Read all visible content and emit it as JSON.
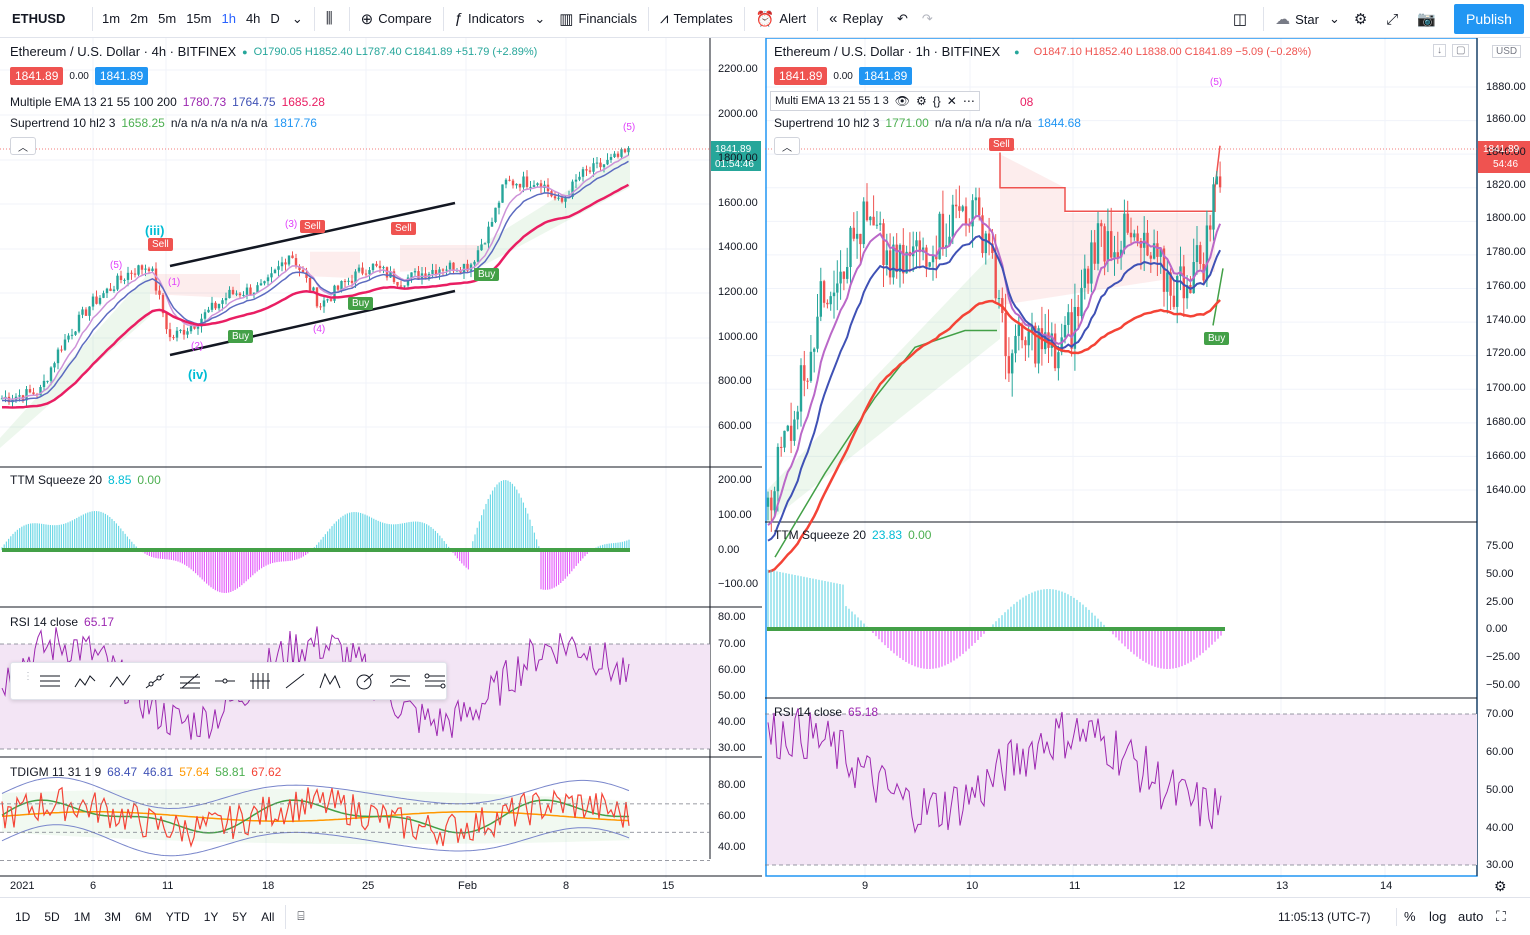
{
  "toolbar": {
    "symbol": "ETHUSD",
    "intervals": [
      "1m",
      "2m",
      "5m",
      "15m",
      "1h",
      "4h",
      "D"
    ],
    "active_interval": "1h",
    "compare": "Compare",
    "indicators": "Indicators",
    "financials": "Financials",
    "templates": "Templates",
    "alert": "Alert",
    "replay": "Replay",
    "star": "Star",
    "publish": "Publish"
  },
  "left_chart": {
    "title": "Ethereum / U.S. Dollar · 4h · BITFINEX",
    "ohlc": "O1790.05 H1852.40 L1787.40 C1841.89 +51.79 (+2.89%)",
    "bid": "1841.89",
    "spread": "0.00",
    "ask": "1841.89",
    "ema_legend": "Multiple EMA 13 21 55 100 200",
    "ema_values": [
      "1780.73",
      "1764.75",
      "1685.28"
    ],
    "supertrend_legend": "Supertrend 10 hl2 3",
    "supertrend_value": "1658.25",
    "supertrend_na": "n/a n/a n/a n/a n/a",
    "supertrend_value2": "1817.76",
    "price_axis": [
      "2200.00",
      "2000.00",
      "1800.00",
      "1600.00",
      "1400.00",
      "1200.00",
      "1000.00",
      "800.00",
      "600.00"
    ],
    "last_price": "1841.89",
    "countdown": "01:54:46",
    "ttm_legend": "TTM Squeeze 20",
    "ttm_v1": "8.85",
    "ttm_v2": "0.00",
    "ttm_axis": [
      "200.00",
      "100.00",
      "0.00",
      "−100.00"
    ],
    "rsi_legend": "RSI 14 close",
    "rsi_value": "65.17",
    "rsi_axis": [
      "80.00",
      "70.00",
      "60.00",
      "50.00",
      "40.00",
      "30.00"
    ],
    "tdi_legend": "TDIGM 11 31 1 9",
    "tdi_values": [
      "68.47",
      "46.81",
      "57.64",
      "58.81",
      "67.62"
    ],
    "tdi_axis": [
      "80.00",
      "60.00",
      "40.00"
    ],
    "time_axis": [
      "2021",
      "6",
      "11",
      "18",
      "25",
      "Feb",
      "8",
      "15"
    ],
    "sell_label": "Sell",
    "buy_label": "Buy",
    "waves": [
      "(iii)",
      "(5)",
      "(1)",
      "(2)",
      "(iv)",
      "(3)",
      "(4)",
      "(5)"
    ]
  },
  "right_chart": {
    "title": "Ethereum / U.S. Dollar · 1h · BITFINEX",
    "ohlc": "O1847.10 H1852.40 L1838.00 C1841.89 −5.09 (−0.28%)",
    "bid": "1841.89",
    "spread": "0.00",
    "ask": "1841.89",
    "ema_legend": "Multi EMA 13 21 55 1 3",
    "ema_tail": "08",
    "supertrend_legend": "Supertrend 10 hl2 3",
    "supertrend_value": "1771.00",
    "supertrend_na": "n/a n/a n/a n/a n/a",
    "supertrend_value2": "1844.68",
    "currency": "USD",
    "price_axis": [
      "1880.00",
      "1860.00",
      "1840.00",
      "1820.00",
      "1800.00",
      "1780.00",
      "1760.00",
      "1740.00",
      "1720.00",
      "1700.00",
      "1680.00",
      "1660.00",
      "1640.00"
    ],
    "last_price": "1841.89",
    "countdown": "54:46",
    "ttm_legend": "TTM Squeeze 20",
    "ttm_v1": "23.83",
    "ttm_v2": "0.00",
    "ttm_axis": [
      "75.00",
      "50.00",
      "25.00",
      "0.00",
      "−25.00",
      "−50.00"
    ],
    "rsi_legend": "RSI 14 close",
    "rsi_value": "65.18",
    "rsi_axis": [
      "70.00",
      "60.00",
      "50.00",
      "40.00",
      "30.00"
    ],
    "time_axis": [
      "9",
      "10",
      "11",
      "12",
      "13",
      "14"
    ],
    "sell_label": "Sell",
    "buy_label": "Buy",
    "wave": "(5)"
  },
  "bottom": {
    "ranges": [
      "1D",
      "5D",
      "1M",
      "3M",
      "6M",
      "YTD",
      "1Y",
      "5Y",
      "All"
    ],
    "clock": "11:05:13 (UTC-7)",
    "percent": "%",
    "log": "log",
    "auto": "auto"
  },
  "colors": {
    "up": "#26a69a",
    "down": "#ef5350",
    "ema_pink": "#e91e63",
    "ema_blue": "#3f51b5",
    "ema_purple": "#9c27b0",
    "accent": "#2196f3",
    "rsi_bg": "#f3e5f5"
  }
}
